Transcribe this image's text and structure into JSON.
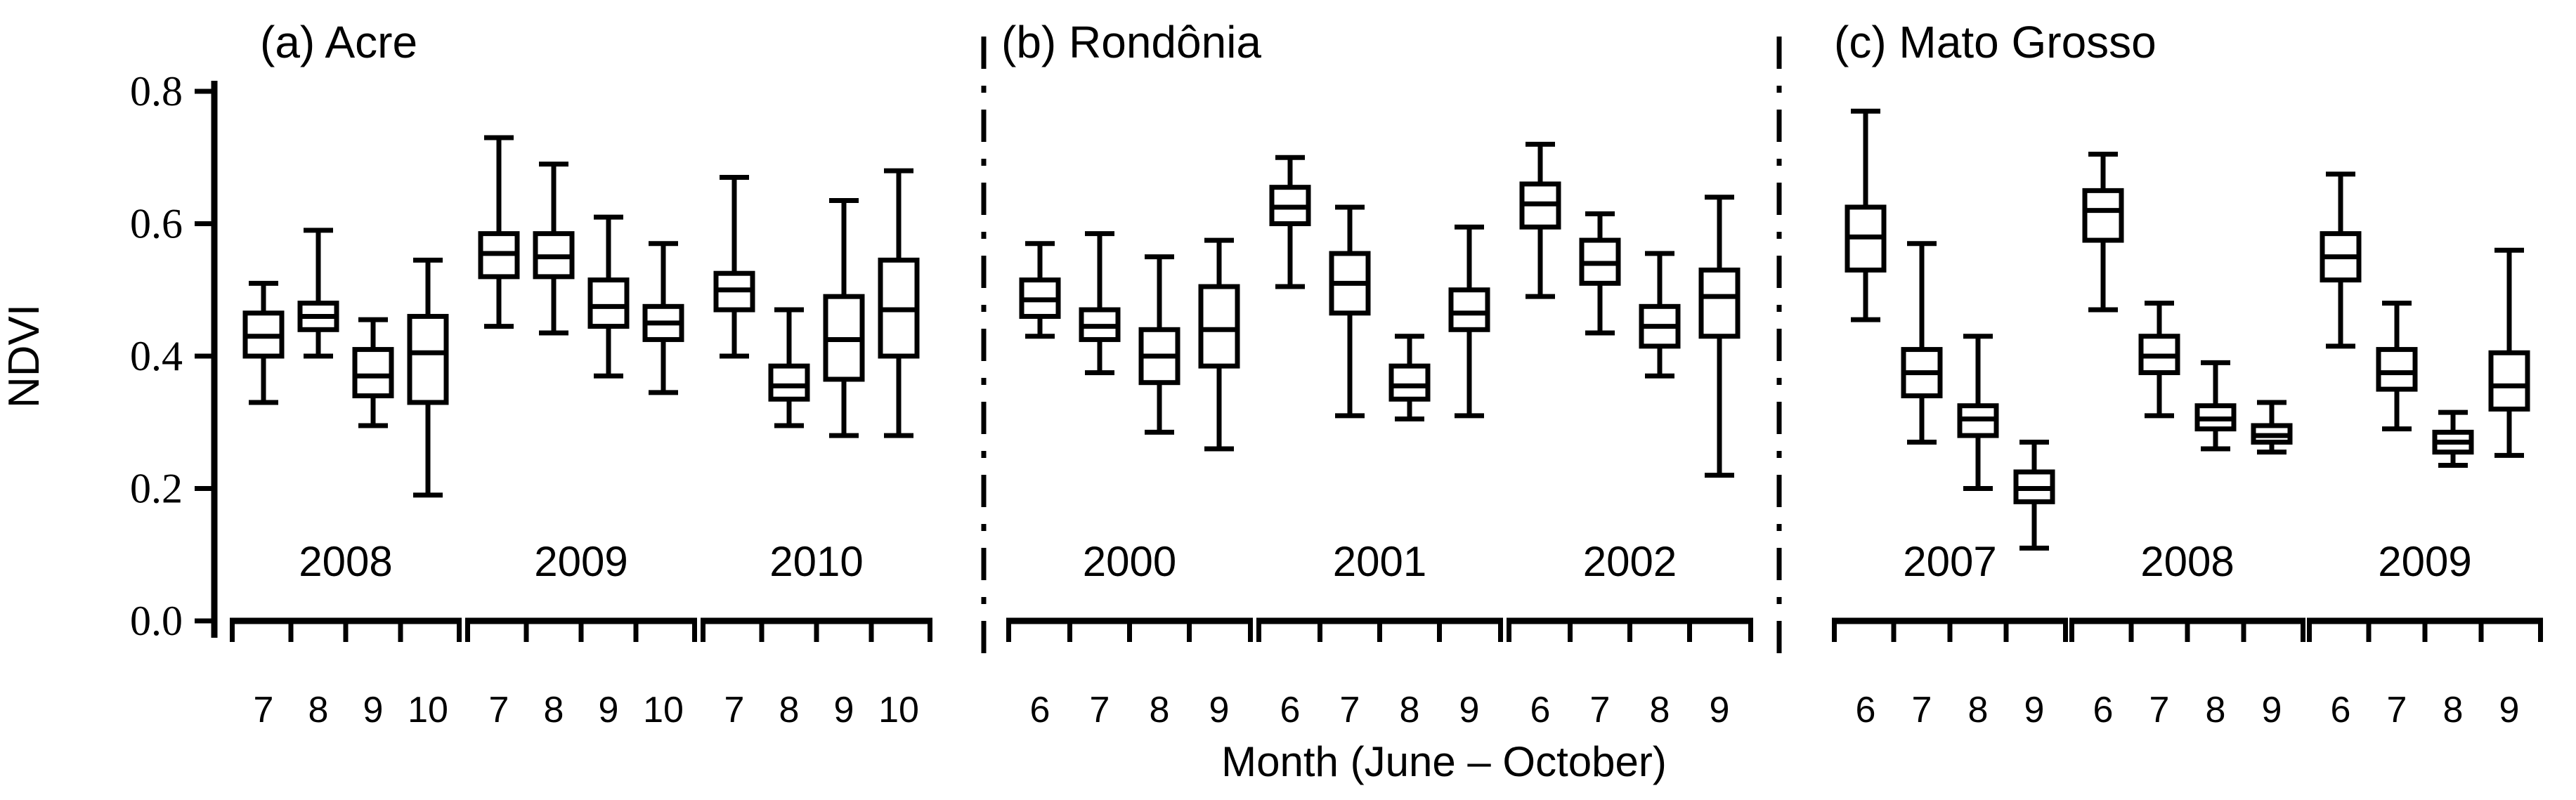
{
  "figure": {
    "background_color": "#ffffff",
    "ink_color": "#000000"
  },
  "chart_data": {
    "type": "boxplot",
    "title": "",
    "ylabel": "NDVI",
    "xlabel": "Month (June – October)",
    "ylim": [
      0.0,
      0.8
    ],
    "yticks": [
      0.0,
      0.2,
      0.4,
      0.6,
      0.8
    ],
    "ytick_labels": [
      "0.0",
      "0.2",
      "0.4",
      "0.6",
      "0.8"
    ],
    "grid": false,
    "legend": "none",
    "box_fill": "#ffffff",
    "box_stroke": "#000000",
    "panel_divider_style": "dash-dot",
    "stats_order": [
      "whisker_low",
      "q1",
      "median",
      "q3",
      "whisker_high"
    ],
    "panels": [
      {
        "slug": "acre",
        "label": "(a) Acre",
        "months": [
          "7",
          "8",
          "9",
          "10"
        ],
        "years": [
          {
            "year": "2008",
            "stats": [
              [
                0.33,
                0.4,
                0.43,
                0.465,
                0.51
              ],
              [
                0.4,
                0.44,
                0.46,
                0.48,
                0.59
              ],
              [
                0.295,
                0.34,
                0.37,
                0.41,
                0.455
              ],
              [
                0.19,
                0.33,
                0.405,
                0.46,
                0.545
              ]
            ]
          },
          {
            "year": "2009",
            "stats": [
              [
                0.445,
                0.52,
                0.555,
                0.585,
                0.73
              ],
              [
                0.435,
                0.52,
                0.55,
                0.585,
                0.69
              ],
              [
                0.37,
                0.445,
                0.475,
                0.515,
                0.61
              ],
              [
                0.345,
                0.425,
                0.45,
                0.475,
                0.57
              ]
            ]
          },
          {
            "year": "2010",
            "stats": [
              [
                0.4,
                0.47,
                0.5,
                0.525,
                0.67
              ],
              [
                0.295,
                0.335,
                0.355,
                0.385,
                0.47
              ],
              [
                0.28,
                0.365,
                0.425,
                0.49,
                0.635
              ],
              [
                0.28,
                0.4,
                0.47,
                0.545,
                0.68
              ]
            ]
          }
        ]
      },
      {
        "slug": "rondonia",
        "label": "(b) Rondônia",
        "months": [
          "6",
          "7",
          "8",
          "9"
        ],
        "years": [
          {
            "year": "2000",
            "stats": [
              [
                0.43,
                0.46,
                0.485,
                0.515,
                0.57
              ],
              [
                0.375,
                0.425,
                0.445,
                0.47,
                0.585
              ],
              [
                0.285,
                0.36,
                0.4,
                0.44,
                0.55
              ],
              [
                0.26,
                0.385,
                0.44,
                0.505,
                0.575
              ]
            ]
          },
          {
            "year": "2001",
            "stats": [
              [
                0.505,
                0.6,
                0.625,
                0.655,
                0.7
              ],
              [
                0.31,
                0.465,
                0.51,
                0.555,
                0.625
              ],
              [
                0.305,
                0.335,
                0.355,
                0.385,
                0.43
              ],
              [
                0.31,
                0.44,
                0.465,
                0.5,
                0.595
              ]
            ]
          },
          {
            "year": "2002",
            "stats": [
              [
                0.49,
                0.595,
                0.63,
                0.66,
                0.72
              ],
              [
                0.435,
                0.51,
                0.54,
                0.575,
                0.615
              ],
              [
                0.37,
                0.415,
                0.445,
                0.475,
                0.555
              ],
              [
                0.22,
                0.43,
                0.49,
                0.53,
                0.64
              ]
            ]
          }
        ]
      },
      {
        "slug": "mato-grosso",
        "label": "(c) Mato Grosso",
        "months": [
          "6",
          "7",
          "8",
          "9"
        ],
        "years": [
          {
            "year": "2007",
            "stats": [
              [
                0.455,
                0.53,
                0.58,
                0.625,
                0.77
              ],
              [
                0.27,
                0.34,
                0.375,
                0.41,
                0.57
              ],
              [
                0.2,
                0.28,
                0.305,
                0.325,
                0.43
              ],
              [
                0.11,
                0.18,
                0.2,
                0.225,
                0.27
              ]
            ]
          },
          {
            "year": "2008",
            "stats": [
              [
                0.47,
                0.575,
                0.62,
                0.65,
                0.705
              ],
              [
                0.31,
                0.375,
                0.4,
                0.43,
                0.48
              ],
              [
                0.26,
                0.29,
                0.305,
                0.325,
                0.39
              ],
              [
                0.255,
                0.27,
                0.28,
                0.295,
                0.33
              ]
            ]
          },
          {
            "year": "2009",
            "stats": [
              [
                0.415,
                0.515,
                0.55,
                0.585,
                0.675
              ],
              [
                0.29,
                0.35,
                0.375,
                0.41,
                0.48
              ],
              [
                0.235,
                0.255,
                0.27,
                0.285,
                0.315
              ],
              [
                0.25,
                0.32,
                0.355,
                0.405,
                0.56
              ]
            ]
          }
        ]
      }
    ]
  }
}
